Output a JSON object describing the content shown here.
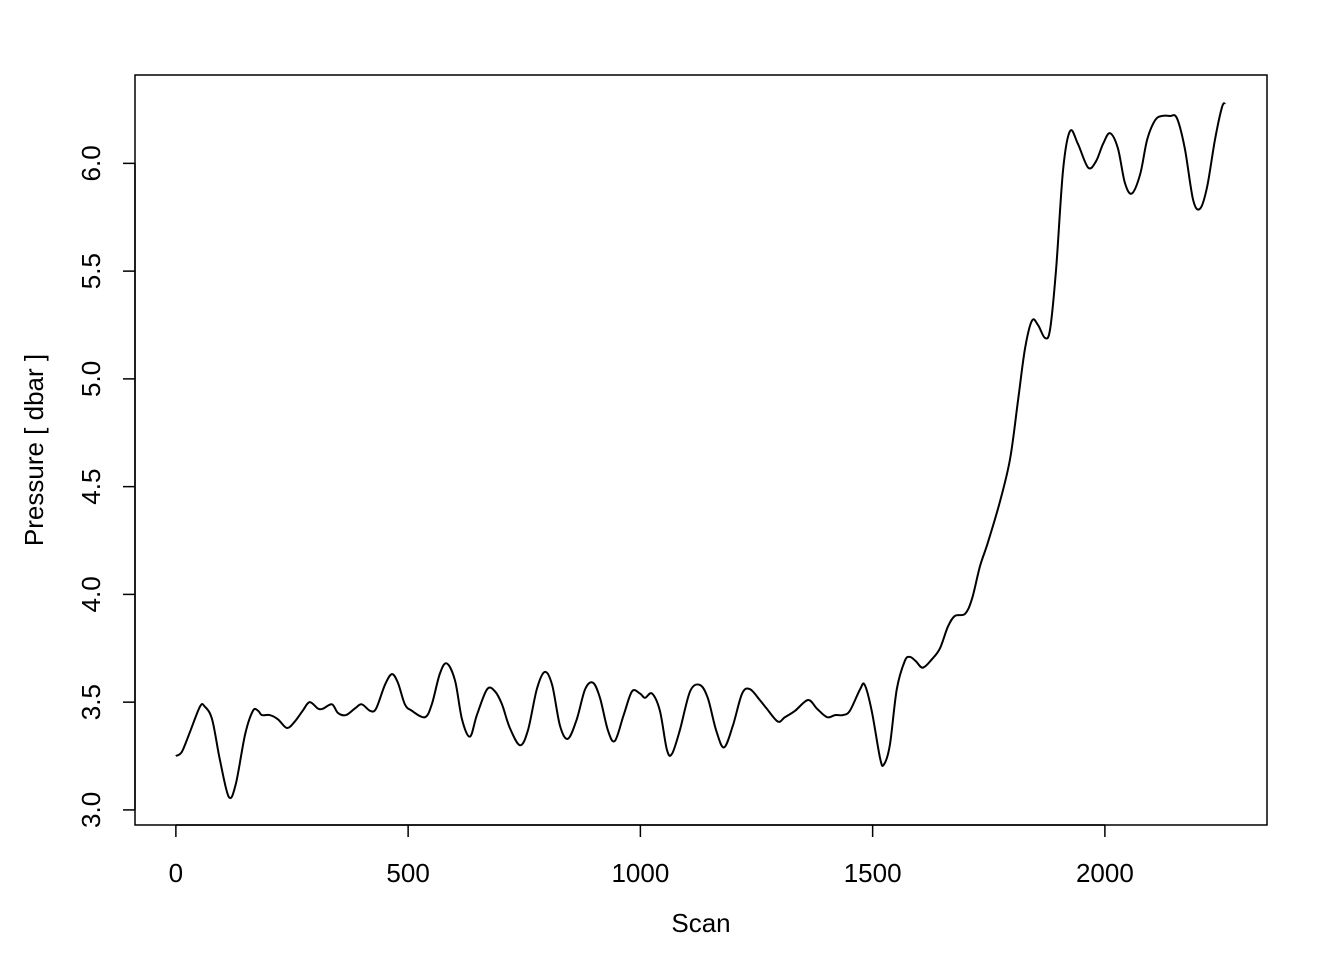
{
  "chart_data": {
    "type": "line",
    "title": "",
    "xlabel": "Scan",
    "ylabel": "Pressure [ dbar ]",
    "xlim": [
      -88,
      2349
    ],
    "ylim": [
      2.93,
      6.41
    ],
    "grid": false,
    "x_ticks": [
      0,
      500,
      1000,
      1500,
      2000
    ],
    "x_tick_labels": [
      "0",
      "500",
      "1000",
      "1500",
      "2000"
    ],
    "y_ticks": [
      3.0,
      3.5,
      4.0,
      4.5,
      5.0,
      5.5,
      6.0
    ],
    "y_tick_labels": [
      "3.0",
      "3.5",
      "4.0",
      "4.5",
      "5.0",
      "5.5",
      "6.0"
    ],
    "series": [
      {
        "color": "#000000",
        "x": [
          0,
          13,
          30,
          52,
          62,
          78,
          95,
          114,
          129,
          149,
          166,
          177,
          185,
          202,
          220,
          239,
          256,
          273,
          288,
          306,
          317,
          336,
          349,
          366,
          385,
          400,
          418,
          431,
          450,
          465,
          478,
          493,
          508,
          536,
          551,
          568,
          583,
          601,
          616,
          633,
          648,
          670,
          687,
          702,
          719,
          741,
          758,
          777,
          794,
          810,
          827,
          844,
          863,
          881,
          898,
          913,
          930,
          945,
          964,
          982,
          999,
          1010,
          1025,
          1042,
          1057,
          1068,
          1085,
          1107,
          1128,
          1145,
          1163,
          1180,
          1199,
          1219,
          1236,
          1257,
          1272,
          1296,
          1311,
          1333,
          1361,
          1380,
          1402,
          1419,
          1436,
          1451,
          1473,
          1483,
          1498,
          1516,
          1524,
          1537,
          1552,
          1569,
          1580,
          1593,
          1608,
          1628,
          1645,
          1662,
          1677,
          1699,
          1714,
          1731,
          1748,
          1774,
          1796,
          1813,
          1828,
          1843,
          1856,
          1871,
          1882,
          1895,
          1910,
          1925,
          1942,
          1964,
          1981,
          1996,
          2011,
          2028,
          2043,
          2058,
          2076,
          2091,
          2108,
          2123,
          2140,
          2155,
          2172,
          2190,
          2205,
          2220,
          2237,
          2252,
          2259
        ],
        "y": [
          3.25,
          3.27,
          3.36,
          3.48,
          3.48,
          3.42,
          3.23,
          3.06,
          3.12,
          3.35,
          3.46,
          3.46,
          3.44,
          3.44,
          3.42,
          3.38,
          3.41,
          3.46,
          3.5,
          3.47,
          3.47,
          3.49,
          3.45,
          3.44,
          3.47,
          3.49,
          3.46,
          3.47,
          3.58,
          3.63,
          3.59,
          3.49,
          3.46,
          3.43,
          3.49,
          3.63,
          3.68,
          3.6,
          3.42,
          3.34,
          3.44,
          3.56,
          3.55,
          3.49,
          3.38,
          3.3,
          3.37,
          3.56,
          3.64,
          3.58,
          3.39,
          3.33,
          3.42,
          3.56,
          3.59,
          3.52,
          3.37,
          3.32,
          3.44,
          3.55,
          3.54,
          3.52,
          3.54,
          3.46,
          3.28,
          3.26,
          3.37,
          3.55,
          3.58,
          3.52,
          3.37,
          3.29,
          3.39,
          3.54,
          3.56,
          3.51,
          3.47,
          3.41,
          3.43,
          3.46,
          3.51,
          3.47,
          3.43,
          3.44,
          3.44,
          3.46,
          3.56,
          3.58,
          3.46,
          3.24,
          3.21,
          3.3,
          3.56,
          3.69,
          3.71,
          3.69,
          3.66,
          3.7,
          3.75,
          3.85,
          3.9,
          3.91,
          3.98,
          4.13,
          4.24,
          4.43,
          4.63,
          4.9,
          5.14,
          5.27,
          5.25,
          5.19,
          5.23,
          5.51,
          5.97,
          6.15,
          6.09,
          5.98,
          6.01,
          6.09,
          6.14,
          6.07,
          5.91,
          5.86,
          5.95,
          6.11,
          6.2,
          6.22,
          6.22,
          6.21,
          6.07,
          5.83,
          5.79,
          5.89,
          6.11,
          6.26,
          6.28
        ]
      }
    ]
  }
}
